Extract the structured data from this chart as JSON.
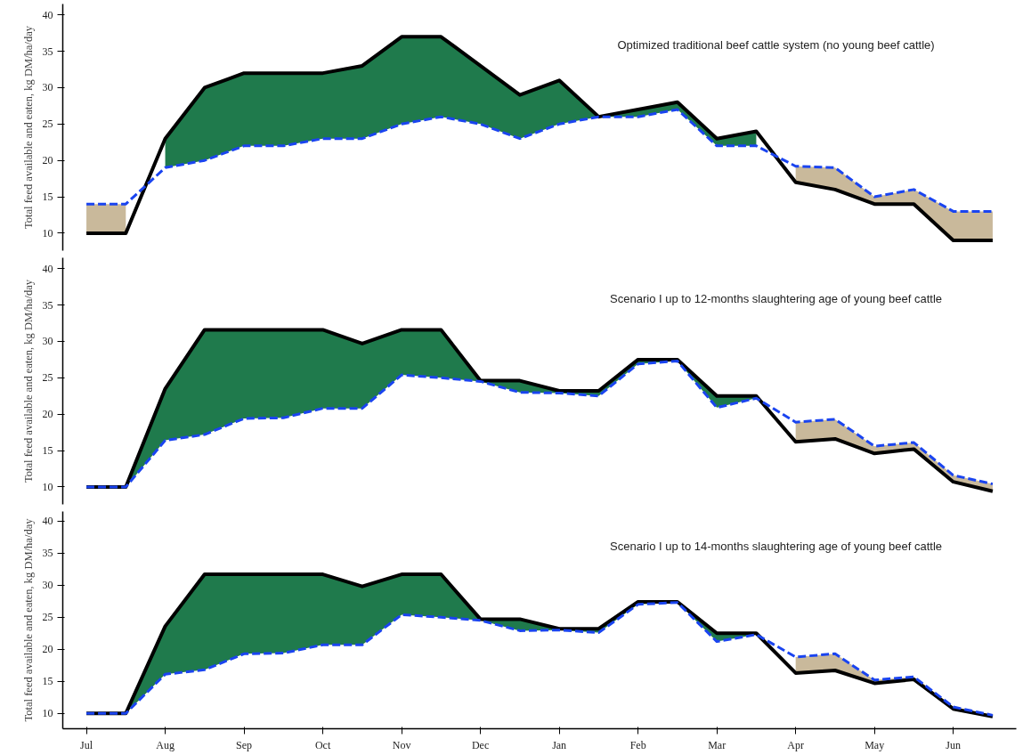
{
  "chart_data": [
    {
      "type": "line",
      "title": "Optimized traditional beef cattle system (no young beef cattle)",
      "ylabel": "Total feed available and eaten, kg DM/ha/day",
      "categories": [
        null,
        null,
        null,
        null,
        null,
        null,
        null,
        null,
        null,
        null,
        null,
        null,
        null,
        null,
        null,
        null,
        null,
        null,
        null,
        null,
        null,
        null,
        null,
        null
      ],
      "series": [
        {
          "color": "#000000",
          "line_style": "solid",
          "values": [
            10,
            10,
            23,
            30,
            32,
            32,
            32,
            33,
            37,
            37,
            33,
            29,
            31,
            26,
            27,
            28,
            23,
            24,
            17,
            16,
            14,
            14,
            9,
            9
          ],
          "lower": [
            null,
            null,
            19,
            20,
            22,
            22,
            23,
            23,
            25,
            26,
            25,
            23,
            25,
            26,
            26,
            27,
            22,
            22,
            null,
            null,
            null,
            null,
            null,
            null
          ],
          "upper": [
            null,
            null,
            23,
            30,
            32,
            32,
            32,
            33,
            37,
            37,
            33,
            29,
            31,
            26,
            27,
            28,
            23,
            24,
            null,
            null,
            null,
            null,
            null,
            null
          ]
        },
        {
          "color": "#1a44f0",
          "line_style": "dashed",
          "values": [
            14,
            14,
            19,
            20,
            22,
            22,
            23,
            23,
            25,
            26,
            25,
            23,
            25,
            26,
            26,
            27,
            22,
            22,
            19.2,
            19,
            15,
            16,
            13,
            13
          ],
          "lower": [
            10,
            10,
            null,
            null,
            null,
            null,
            null,
            null,
            null,
            null,
            null,
            null,
            null,
            null,
            null,
            null,
            null,
            null,
            17,
            16,
            14,
            14,
            9,
            9
          ],
          "upper": [
            14,
            14,
            null,
            null,
            null,
            null,
            null,
            null,
            null,
            null,
            null,
            null,
            null,
            null,
            null,
            null,
            null,
            null,
            19.2,
            19,
            15,
            16,
            13,
            13
          ]
        }
      ],
      "colors": [
        "#1f7a4c",
        "#c9b99b"
      ],
      "ylim": [
        7.6,
        41.5
      ],
      "yticks": [
        10,
        15,
        20,
        25,
        30,
        35,
        40
      ],
      "tick_labels": "y"
    },
    {
      "type": "line",
      "title": "Scenario I up to 12-months slaughtering age of young beef cattle",
      "ylabel": "Total feed available and eaten, kg DM/ha/day",
      "categories": [
        null,
        null,
        null,
        null,
        null,
        null,
        null,
        null,
        null,
        null,
        null,
        null,
        null,
        null,
        null,
        null,
        null,
        null,
        null,
        null,
        null,
        null,
        null,
        null
      ],
      "series": [
        {
          "color": "#000000",
          "line_style": "solid",
          "values": [
            10,
            10,
            23.5,
            31.6,
            31.6,
            31.6,
            31.6,
            29.7,
            31.6,
            31.6,
            24.6,
            24.6,
            23.2,
            23.2,
            27.5,
            27.5,
            22.5,
            22.5,
            16.2,
            16.6,
            14.6,
            15.2,
            10.7,
            9.4
          ],
          "lower": [
            null,
            10,
            16.4,
            17.2,
            19.4,
            19.5,
            20.8,
            20.8,
            25.4,
            25,
            24.5,
            23,
            22.9,
            22.5,
            26.9,
            27.3,
            20.9,
            22.2,
            null,
            null,
            null,
            null,
            null,
            null
          ],
          "upper": [
            null,
            10,
            23.5,
            31.6,
            31.6,
            31.6,
            31.6,
            29.7,
            31.6,
            31.6,
            24.6,
            24.6,
            23.2,
            23.2,
            27.5,
            27.5,
            22.5,
            22.5,
            null,
            null,
            null,
            null,
            null,
            null
          ]
        },
        {
          "color": "#1a44f0",
          "line_style": "dashed",
          "values": [
            10,
            10,
            16.4,
            17.2,
            19.4,
            19.5,
            20.8,
            20.8,
            25.4,
            25,
            24.5,
            23,
            22.9,
            22.5,
            26.9,
            27.3,
            20.9,
            22.2,
            18.9,
            19.3,
            15.6,
            16.1,
            11.6,
            10.4
          ],
          "lower": [
            null,
            null,
            null,
            null,
            null,
            null,
            null,
            null,
            null,
            null,
            null,
            null,
            null,
            null,
            null,
            null,
            null,
            null,
            16.2,
            16.6,
            14.6,
            15.2,
            10.7,
            9.4
          ],
          "upper": [
            null,
            null,
            null,
            null,
            null,
            null,
            null,
            null,
            null,
            null,
            null,
            null,
            null,
            null,
            null,
            null,
            null,
            null,
            18.9,
            19.3,
            15.6,
            16.1,
            11.6,
            10.4
          ]
        }
      ],
      "colors": [
        "#1f7a4c",
        "#c9b99b"
      ],
      "ylim": [
        7.6,
        41.5
      ],
      "yticks": [
        10,
        15,
        20,
        25,
        30,
        35,
        40
      ],
      "tick_labels": "y"
    },
    {
      "type": "line",
      "title": "Scenario I up to 14-months slaughtering age of young beef cattle",
      "ylabel": "Total feed available and eaten, kg DM/ha/day",
      "categories": [
        "Jul",
        null,
        "Aug",
        null,
        "Sep",
        null,
        "Oct",
        null,
        "Nov",
        null,
        "Dec",
        null,
        "Jan",
        null,
        "Feb",
        null,
        "Mar",
        null,
        "Apr",
        null,
        "May",
        null,
        "Jun",
        null
      ],
      "series": [
        {
          "color": "#000000",
          "line_style": "solid",
          "values": [
            10,
            10,
            23.6,
            31.7,
            31.7,
            31.7,
            31.7,
            29.8,
            31.7,
            31.7,
            24.7,
            24.7,
            23.2,
            23.2,
            27.4,
            27.4,
            22.5,
            22.5,
            16.3,
            16.7,
            14.7,
            15.3,
            10.7,
            9.5
          ],
          "lower": [
            null,
            10,
            16.1,
            16.8,
            19.3,
            19.4,
            20.7,
            20.7,
            25.4,
            25,
            24.5,
            22.9,
            23,
            22.6,
            27,
            27.3,
            21.2,
            22.3,
            null,
            null,
            null,
            null,
            null,
            null
          ],
          "upper": [
            null,
            10,
            23.6,
            31.7,
            31.7,
            31.7,
            31.7,
            29.8,
            31.7,
            31.7,
            24.7,
            24.7,
            23.2,
            23.2,
            27.4,
            27.4,
            22.5,
            22.5,
            null,
            null,
            null,
            null,
            null,
            null
          ]
        },
        {
          "color": "#1a44f0",
          "line_style": "dashed",
          "values": [
            10,
            10,
            16.1,
            16.8,
            19.3,
            19.4,
            20.7,
            20.7,
            25.4,
            25,
            24.5,
            22.9,
            23,
            22.6,
            27,
            27.3,
            21.2,
            22.3,
            18.8,
            19.3,
            15.2,
            15.7,
            11,
            9.7
          ],
          "lower": [
            null,
            null,
            null,
            null,
            null,
            null,
            null,
            null,
            null,
            null,
            null,
            null,
            null,
            null,
            null,
            null,
            null,
            null,
            16.3,
            16.7,
            14.7,
            15.3,
            10.7,
            9.5
          ],
          "upper": [
            null,
            null,
            null,
            null,
            null,
            null,
            null,
            null,
            null,
            null,
            null,
            null,
            null,
            null,
            null,
            null,
            null,
            null,
            18.8,
            19.3,
            15.2,
            15.7,
            11,
            9.7
          ]
        }
      ],
      "colors": [
        "#1f7a4c",
        "#c9b99b"
      ],
      "ylim": [
        7.6,
        41.5
      ],
      "yticks": [
        10,
        15,
        20,
        25,
        30,
        35,
        40
      ]
    }
  ]
}
